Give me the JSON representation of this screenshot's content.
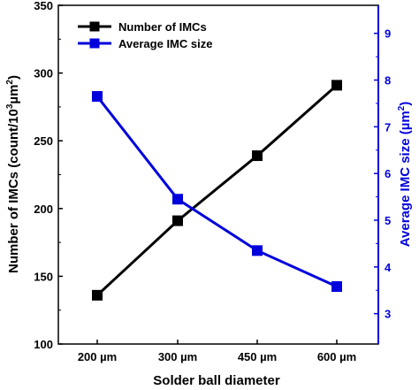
{
  "colors": {
    "left": "#000000",
    "right": "#0000dd",
    "frame": "#000000"
  },
  "chart_data": {
    "type": "line",
    "categories": [
      "200 µm",
      "300 µm",
      "450 µm",
      "600 µm"
    ],
    "xlabel": "Solder ball diameter",
    "series": [
      {
        "name": "Number of IMCs",
        "axis": "left",
        "color": "#000000",
        "marker": "square",
        "values": [
          136,
          191,
          239,
          291
        ]
      },
      {
        "name": "Average IMC size",
        "axis": "right",
        "color": "#0000dd",
        "marker": "square",
        "values": [
          7.65,
          5.45,
          4.35,
          3.58
        ]
      }
    ],
    "y_left": {
      "label_prefix": "Number of IMCs (count/10",
      "label_sup": "3",
      "label_mid": "µm",
      "label_sup2": "2",
      "label_suffix": ")",
      "ylim": [
        100,
        350
      ],
      "ticks": [
        100,
        150,
        200,
        250,
        300,
        350
      ]
    },
    "y_right": {
      "label_prefix": "Average IMC size (µm",
      "label_sup": "2",
      "label_suffix": ")",
      "ylim": [
        2.35,
        9.6
      ],
      "ticks": [
        3,
        4,
        5,
        6,
        7,
        8,
        9
      ]
    },
    "legend": "top-left",
    "grid": false
  }
}
